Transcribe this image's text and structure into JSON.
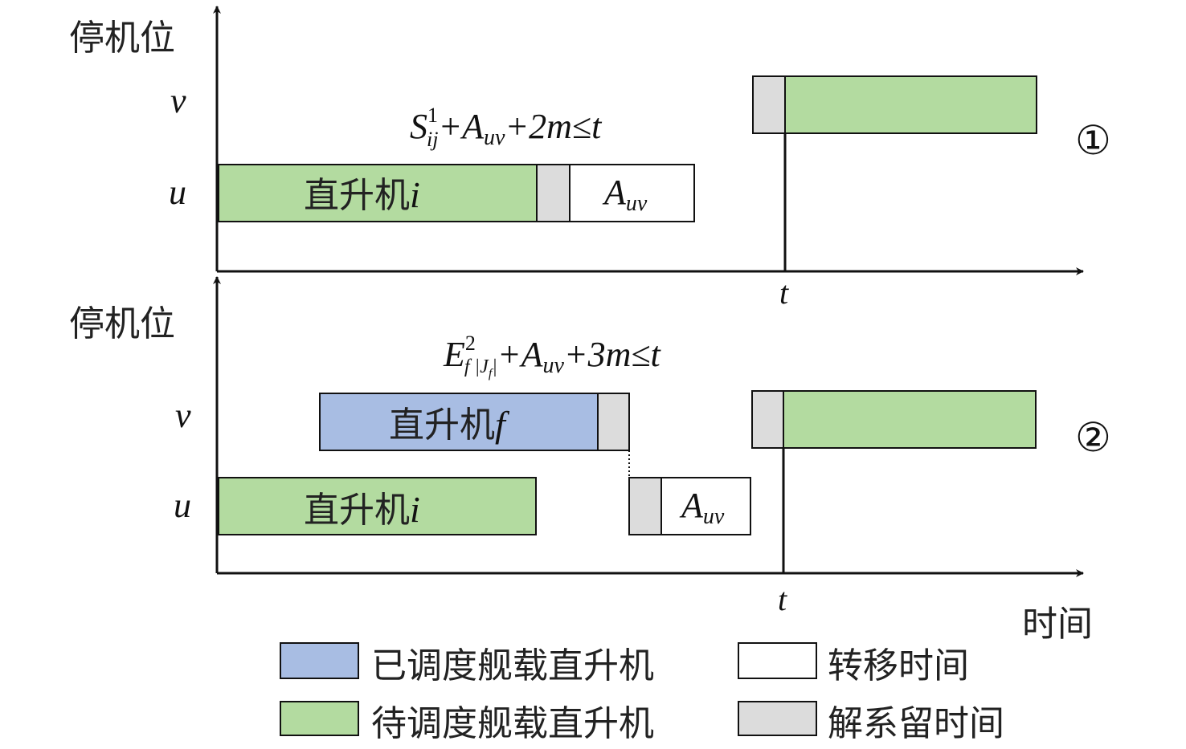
{
  "colors": {
    "scheduled": "#a8bde3",
    "pending": "#b3dba0",
    "transfer": "#ffffff",
    "release": "#dcdcdc"
  },
  "axis": {
    "y_label": "停机位",
    "x_label": "时间",
    "t": "t",
    "row_u": "u",
    "row_v": "v"
  },
  "panel1": {
    "marker": "①",
    "heli_i": {
      "text": "直升机",
      "var": "i"
    },
    "transfer": {
      "A": "A",
      "sub": "uv"
    },
    "formula": {
      "S": "S",
      "sup": "1",
      "sub": "ij",
      "p1": "+A",
      "sub2": "uv",
      "p2": "+2m≤t"
    }
  },
  "panel2": {
    "marker": "②",
    "heli_f": {
      "text": "直升机",
      "var": "f"
    },
    "heli_i": {
      "text": "直升机",
      "var": "i"
    },
    "transfer": {
      "A": "A",
      "sub": "uv"
    },
    "formula": {
      "E": "E",
      "sup": "2",
      "sub": "f |J",
      "subsub": "f",
      "subend": "|",
      "p1": "+A",
      "sub2": "uv",
      "p2": "+3m≤t"
    }
  },
  "legend": {
    "scheduled": "已调度舰载直升机",
    "pending": "待调度舰载直升机",
    "transfer": "转移时间",
    "release": "解系留时间"
  }
}
